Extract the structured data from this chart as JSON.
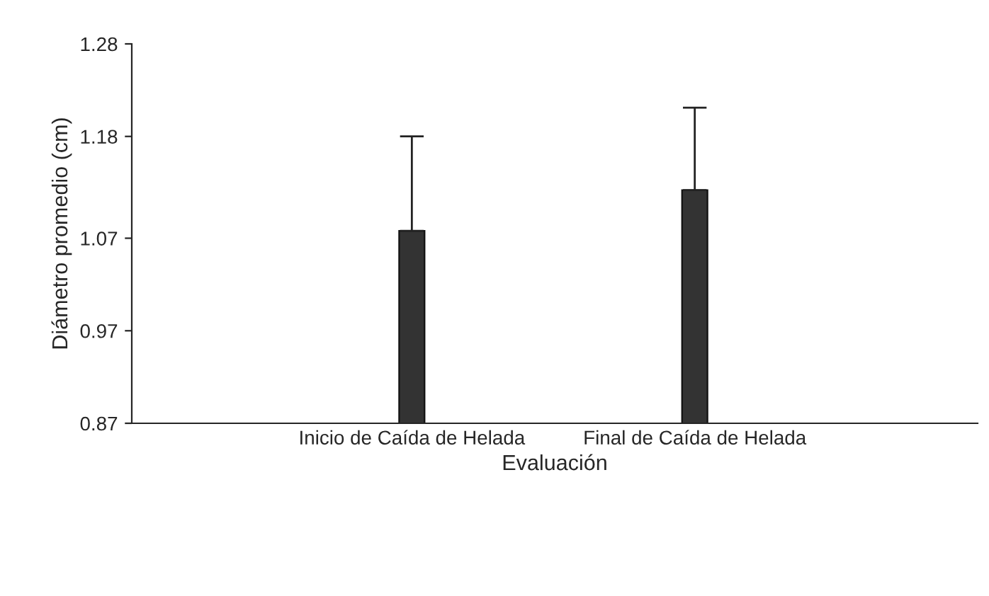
{
  "chart_data": {
    "type": "bar",
    "xlabel": "Evaluación",
    "ylabel": "Diámetro promedio (cm)",
    "categories": [
      "Inicio de Caída de Helada",
      "Final de Caída de Helada"
    ],
    "series": [
      {
        "color": "#333333",
        "values": [
          1.078,
          1.122
        ],
        "errors": [
          0.102,
          0.089
        ]
      }
    ],
    "ylim": [
      0.87,
      1.28
    ],
    "yticks": [
      0.87,
      0.97,
      1.07,
      1.18,
      1.28
    ],
    "grid": false,
    "legend": false
  }
}
